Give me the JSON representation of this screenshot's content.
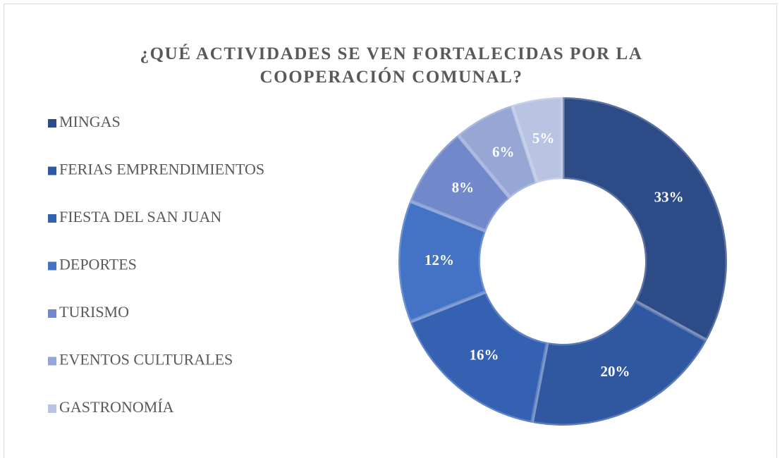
{
  "chart_data": {
    "type": "donut",
    "title": "¿QUÉ ACTIVIDADES SE VEN FORTALECIDAS POR LA COOPERACIÓN COMUNAL?",
    "categories": [
      "MINGAS",
      "FERIAS EMPRENDIMIENTOS",
      "FIESTA DEL SAN JUAN",
      "DEPORTES",
      "TURISMO",
      "EVENTOS CULTURALES",
      "GASTRONOMÍA"
    ],
    "values": [
      33,
      20,
      16,
      12,
      8,
      6,
      5
    ],
    "value_labels": [
      "33%",
      "20%",
      "16%",
      "12%",
      "8%",
      "6%",
      "5%"
    ],
    "colors": [
      "#2d4b86",
      "#3058a0",
      "#3461b2",
      "#4472c4",
      "#7189cb",
      "#97a7d5",
      "#b9c3e2"
    ],
    "legend": "left"
  }
}
